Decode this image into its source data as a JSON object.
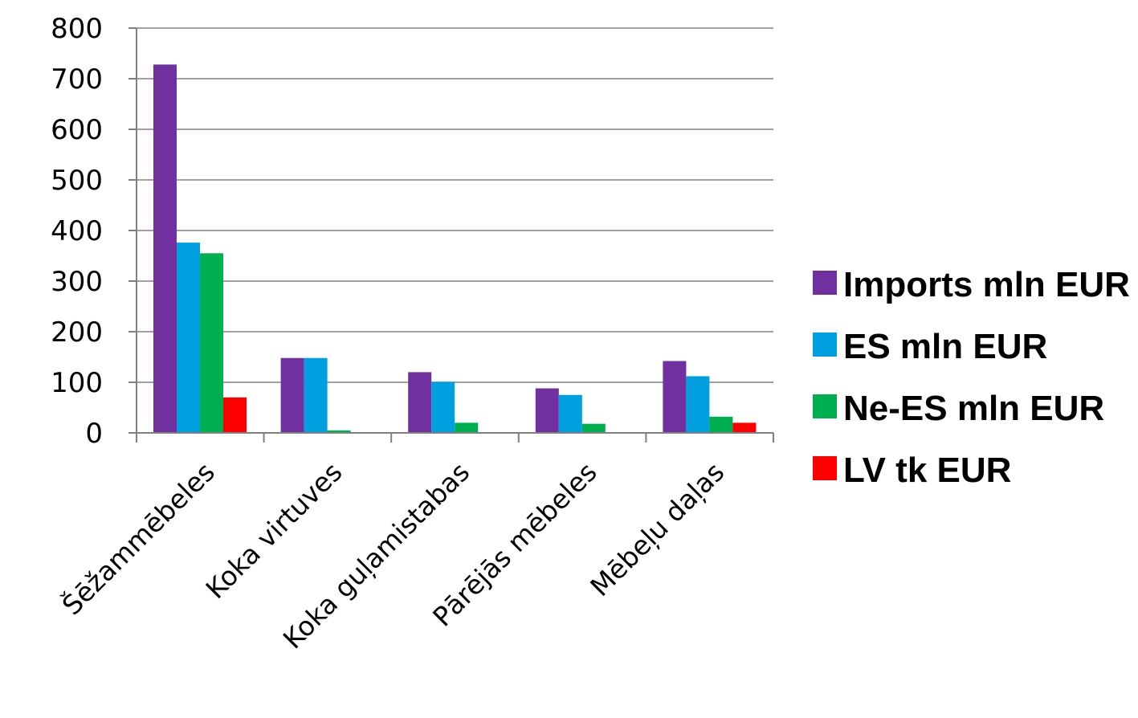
{
  "chart_data": {
    "type": "bar",
    "title": "",
    "xlabel": "",
    "ylabel": "",
    "categories": [
      "Šēžammēbeles",
      "Koka virtuves",
      "Koka guļamistabas",
      "Pārējās mēbeles",
      "Mēbeļu daļas"
    ],
    "series": [
      {
        "name": "Imports mln EUR",
        "color": "#7030a0",
        "values": [
          728,
          148,
          120,
          88,
          142
        ]
      },
      {
        "name": "ES mln EUR",
        "color": "#00a0e0",
        "values": [
          376,
          148,
          101,
          75,
          112
        ]
      },
      {
        "name": "Ne-ES mln EUR",
        "color": "#00b050",
        "values": [
          355,
          5,
          20,
          18,
          32
        ]
      },
      {
        "name": "LV tk EUR",
        "color": "#ff0000",
        "values": [
          70,
          0,
          0,
          0,
          20
        ]
      }
    ],
    "ylim": [
      0,
      800
    ],
    "yticks": [
      0,
      100,
      200,
      300,
      400,
      500,
      600,
      700,
      800
    ],
    "grid": true,
    "legend_position": "right"
  }
}
